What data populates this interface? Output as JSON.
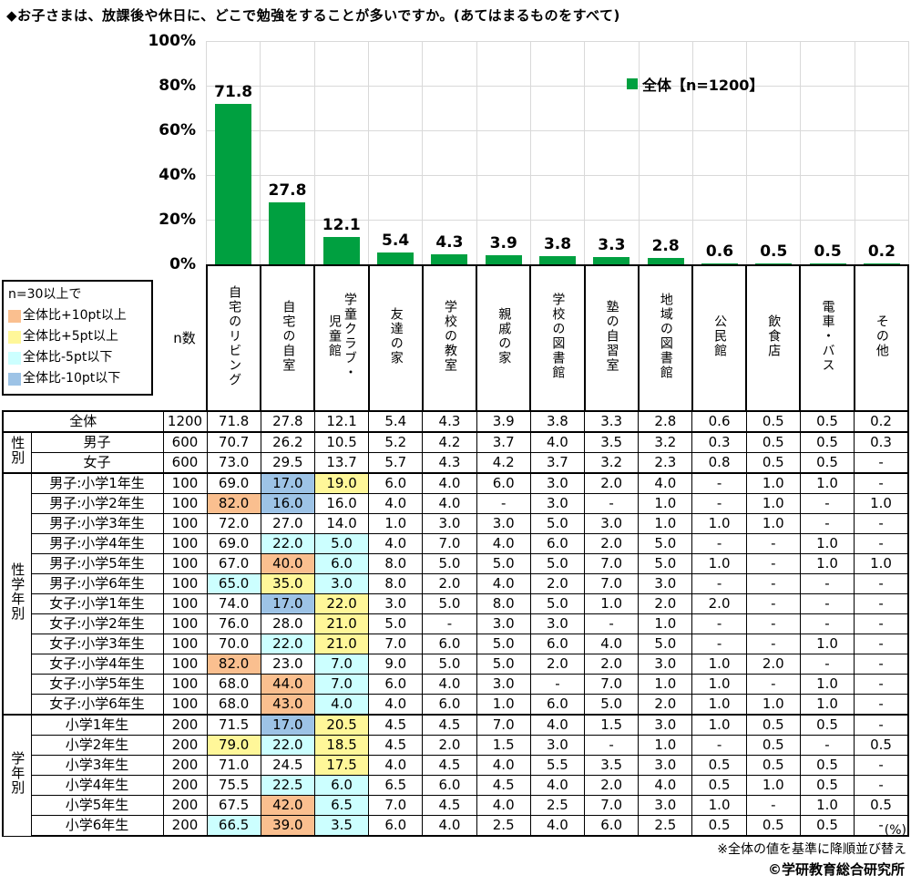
{
  "title": "◆お子さまは、放課後や休日に、どこで勉強をすることが多いですか。(あてはまるものをすべて)",
  "colors": {
    "bar_green": "#00A040",
    "gridline": "#D9D9D9",
    "hl_orange": "#FABF8F",
    "hl_yellow": "#FFF799",
    "hl_cyan": "#CCFFFF",
    "hl_blue": "#9DC3E6"
  },
  "chart": {
    "legend_label": "全体【n=1200】",
    "y_ticks": [
      "100%",
      "80%",
      "60%",
      "40%",
      "20%",
      "0%"
    ]
  },
  "chart_data": {
    "type": "bar",
    "title": "お子さまは、放課後や休日に、どこで勉強をすることが多いですか。(あてはまるものをすべて)",
    "series_name": "全体【n=1200】",
    "categories": [
      "自宅のリビング",
      "自宅の自室",
      "学童クラブ・児童館",
      "友達の家",
      "学校の教室",
      "親戚の家",
      "学校の図書館",
      "塾の自習室",
      "地域の図書館",
      "公民館",
      "飲食店",
      "電車・バス",
      "その他"
    ],
    "values": [
      71.8,
      27.8,
      12.1,
      5.4,
      4.3,
      3.9,
      3.8,
      3.3,
      2.8,
      0.6,
      0.5,
      0.5,
      0.2
    ],
    "xlabel": "",
    "ylabel": "%",
    "ylim": [
      0,
      100
    ],
    "y_tick_step": 20,
    "grid": true,
    "legend_position": "top-right",
    "sort_note": "全体の値を基準に降順並び替え"
  },
  "threshold_legend": {
    "title": "n=30以上で",
    "items": [
      {
        "label": "全体比+10pt以上",
        "color": "#FABF8F",
        "code": "o"
      },
      {
        "label": "全体比+5pt以上",
        "color": "#FFF799",
        "code": "y"
      },
      {
        "label": "全体比-5pt以下",
        "color": "#CCFFFF",
        "code": "c"
      },
      {
        "label": "全体比-10pt以下",
        "color": "#9DC3E6",
        "code": "b"
      }
    ]
  },
  "table": {
    "n_header": "n数",
    "column_headers": [
      "自宅のリビング",
      "自宅の自室",
      "学童クラブ・\n児童館",
      "友達の家",
      "学校の教室",
      "親戚の家",
      "学校の図書館",
      "塾の自習室",
      "地域の図書館",
      "公民館",
      "飲食店",
      "電車・バス",
      "その他"
    ],
    "rows": [
      {
        "merge": true,
        "label": "全体",
        "n": "1200",
        "v": [
          "71.8",
          "27.8",
          "12.1",
          "5.4",
          "4.3",
          "3.9",
          "3.8",
          "3.3",
          "2.8",
          "0.6",
          "0.5",
          "0.5",
          "0.2"
        ]
      },
      {
        "g": "性別",
        "span": 2,
        "gs": true,
        "label": "男子",
        "n": "600",
        "v": [
          "70.7",
          "26.2",
          "10.5",
          "5.2",
          "4.2",
          "3.7",
          "4.0",
          "3.5",
          "3.2",
          "0.3",
          "0.5",
          "0.5",
          "0.3"
        ]
      },
      {
        "label": "女子",
        "n": "600",
        "v": [
          "73.0",
          "29.5",
          "13.7",
          "5.7",
          "4.3",
          "4.2",
          "3.7",
          "3.2",
          "2.3",
          "0.8",
          "0.5",
          "0.5",
          "-"
        ]
      },
      {
        "g": "性学年別",
        "span": 12,
        "gs": true,
        "label": "男子:小学1年生",
        "n": "100",
        "v": [
          "69.0",
          "17.0",
          "19.0",
          "6.0",
          "4.0",
          "6.0",
          "3.0",
          "2.0",
          "4.0",
          "-",
          "1.0",
          "1.0",
          "-"
        ],
        "hl": [
          "",
          "b",
          "y",
          "",
          "",
          "",
          "",
          "",
          "",
          "",
          "",
          "",
          ""
        ]
      },
      {
        "label": "男子:小学2年生",
        "n": "100",
        "v": [
          "82.0",
          "16.0",
          "16.0",
          "4.0",
          "4.0",
          "-",
          "3.0",
          "-",
          "1.0",
          "-",
          "1.0",
          "-",
          "1.0"
        ],
        "hl": [
          "o",
          "b",
          "",
          "",
          "",
          "",
          "",
          "",
          "",
          "",
          "",
          "",
          ""
        ]
      },
      {
        "label": "男子:小学3年生",
        "n": "100",
        "v": [
          "72.0",
          "27.0",
          "14.0",
          "1.0",
          "3.0",
          "3.0",
          "5.0",
          "3.0",
          "1.0",
          "1.0",
          "1.0",
          "-",
          "-"
        ]
      },
      {
        "label": "男子:小学4年生",
        "n": "100",
        "v": [
          "69.0",
          "22.0",
          "5.0",
          "4.0",
          "7.0",
          "4.0",
          "6.0",
          "2.0",
          "5.0",
          "-",
          "-",
          "1.0",
          "-"
        ],
        "hl": [
          "",
          "c",
          "c",
          "",
          "",
          "",
          "",
          "",
          "",
          "",
          "",
          "",
          ""
        ]
      },
      {
        "label": "男子:小学5年生",
        "n": "100",
        "v": [
          "67.0",
          "40.0",
          "6.0",
          "8.0",
          "5.0",
          "5.0",
          "5.0",
          "7.0",
          "5.0",
          "1.0",
          "-",
          "1.0",
          "1.0"
        ],
        "hl": [
          "",
          "o",
          "c",
          "",
          "",
          "",
          "",
          "",
          "",
          "",
          "",
          "",
          ""
        ]
      },
      {
        "label": "男子:小学6年生",
        "n": "100",
        "v": [
          "65.0",
          "35.0",
          "3.0",
          "8.0",
          "2.0",
          "4.0",
          "2.0",
          "7.0",
          "3.0",
          "-",
          "-",
          "-",
          "-"
        ],
        "hl": [
          "c",
          "y",
          "c",
          "",
          "",
          "",
          "",
          "",
          "",
          "",
          "",
          "",
          ""
        ]
      },
      {
        "label": "女子:小学1年生",
        "n": "100",
        "v": [
          "74.0",
          "17.0",
          "22.0",
          "3.0",
          "5.0",
          "8.0",
          "5.0",
          "1.0",
          "2.0",
          "2.0",
          "-",
          "-",
          "-"
        ],
        "hl": [
          "",
          "b",
          "y",
          "",
          "",
          "",
          "",
          "",
          "",
          "",
          "",
          "",
          ""
        ]
      },
      {
        "label": "女子:小学2年生",
        "n": "100",
        "v": [
          "76.0",
          "28.0",
          "21.0",
          "5.0",
          "-",
          "3.0",
          "3.0",
          "-",
          "1.0",
          "-",
          "-",
          "-",
          "-"
        ],
        "hl": [
          "",
          "",
          "y",
          "",
          "",
          "",
          "",
          "",
          "",
          "",
          "",
          "",
          ""
        ]
      },
      {
        "label": "女子:小学3年生",
        "n": "100",
        "v": [
          "70.0",
          "22.0",
          "21.0",
          "7.0",
          "6.0",
          "5.0",
          "6.0",
          "4.0",
          "5.0",
          "-",
          "-",
          "1.0",
          "-"
        ],
        "hl": [
          "",
          "c",
          "y",
          "",
          "",
          "",
          "",
          "",
          "",
          "",
          "",
          "",
          ""
        ]
      },
      {
        "label": "女子:小学4年生",
        "n": "100",
        "v": [
          "82.0",
          "23.0",
          "7.0",
          "9.0",
          "5.0",
          "5.0",
          "2.0",
          "2.0",
          "3.0",
          "1.0",
          "2.0",
          "-",
          "-"
        ],
        "hl": [
          "o",
          "",
          "c",
          "",
          "",
          "",
          "",
          "",
          "",
          "",
          "",
          "",
          ""
        ]
      },
      {
        "label": "女子:小学5年生",
        "n": "100",
        "v": [
          "68.0",
          "44.0",
          "7.0",
          "6.0",
          "4.0",
          "3.0",
          "-",
          "7.0",
          "1.0",
          "1.0",
          "-",
          "1.0",
          "-"
        ],
        "hl": [
          "",
          "o",
          "c",
          "",
          "",
          "",
          "",
          "",
          "",
          "",
          "",
          "",
          ""
        ]
      },
      {
        "label": "女子:小学6年生",
        "n": "100",
        "v": [
          "68.0",
          "43.0",
          "4.0",
          "4.0",
          "6.0",
          "1.0",
          "6.0",
          "5.0",
          "2.0",
          "1.0",
          "1.0",
          "1.0",
          "-"
        ],
        "hl": [
          "",
          "o",
          "c",
          "",
          "",
          "",
          "",
          "",
          "",
          "",
          "",
          "",
          ""
        ]
      },
      {
        "g": "学年別",
        "span": 6,
        "gs": true,
        "label": "小学1年生",
        "n": "200",
        "v": [
          "71.5",
          "17.0",
          "20.5",
          "4.5",
          "4.5",
          "7.0",
          "4.0",
          "1.5",
          "3.0",
          "1.0",
          "0.5",
          "0.5",
          "-"
        ],
        "hl": [
          "",
          "b",
          "y",
          "",
          "",
          "",
          "",
          "",
          "",
          "",
          "",
          "",
          ""
        ]
      },
      {
        "label": "小学2年生",
        "n": "200",
        "v": [
          "79.0",
          "22.0",
          "18.5",
          "4.5",
          "2.0",
          "1.5",
          "3.0",
          "-",
          "1.0",
          "-",
          "0.5",
          "-",
          "0.5"
        ],
        "hl": [
          "y",
          "c",
          "y",
          "",
          "",
          "",
          "",
          "",
          "",
          "",
          "",
          "",
          ""
        ]
      },
      {
        "label": "小学3年生",
        "n": "200",
        "v": [
          "71.0",
          "24.5",
          "17.5",
          "4.0",
          "4.5",
          "4.0",
          "5.5",
          "3.5",
          "3.0",
          "0.5",
          "0.5",
          "0.5",
          "-"
        ],
        "hl": [
          "",
          "",
          "y",
          "",
          "",
          "",
          "",
          "",
          "",
          "",
          "",
          "",
          ""
        ]
      },
      {
        "label": "小学4年生",
        "n": "200",
        "v": [
          "75.5",
          "22.5",
          "6.0",
          "6.5",
          "6.0",
          "4.5",
          "4.0",
          "2.0",
          "4.0",
          "0.5",
          "1.0",
          "0.5",
          "-"
        ],
        "hl": [
          "",
          "c",
          "c",
          "",
          "",
          "",
          "",
          "",
          "",
          "",
          "",
          "",
          ""
        ]
      },
      {
        "label": "小学5年生",
        "n": "200",
        "v": [
          "67.5",
          "42.0",
          "6.5",
          "7.0",
          "4.5",
          "4.0",
          "2.5",
          "7.0",
          "3.0",
          "1.0",
          "-",
          "1.0",
          "0.5"
        ],
        "hl": [
          "",
          "o",
          "c",
          "",
          "",
          "",
          "",
          "",
          "",
          "",
          "",
          "",
          ""
        ]
      },
      {
        "label": "小学6年生",
        "n": "200",
        "v": [
          "66.5",
          "39.0",
          "3.5",
          "6.0",
          "4.0",
          "2.5",
          "4.0",
          "6.0",
          "2.5",
          "0.5",
          "0.5",
          "0.5",
          "-"
        ],
        "hl": [
          "c",
          "o",
          "c",
          "",
          "",
          "",
          "",
          "",
          "",
          "",
          "",
          "",
          ""
        ]
      }
    ]
  },
  "footer": {
    "unit": "(%)",
    "note": "※全体の値を基準に降順並び替え",
    "copyright": "©学研教育総合研究所"
  }
}
